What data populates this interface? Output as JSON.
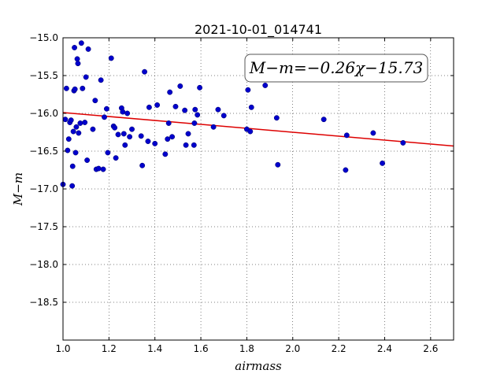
{
  "chart_data": {
    "type": "scatter",
    "title": "2021-10-01_014741",
    "xlabel": "airmass",
    "ylabel": "M−m",
    "xlim": [
      1.0,
      2.7
    ],
    "ylim": [
      -19.0,
      -15.0
    ],
    "y_inverted": true,
    "grid": true,
    "x_ticks": [
      1.0,
      1.2,
      1.4,
      1.6,
      1.8,
      2.0,
      2.2,
      2.4,
      2.6
    ],
    "x_tick_labels": [
      "1.0",
      "1.2",
      "1.4",
      "1.6",
      "1.8",
      "2.0",
      "2.2",
      "2.4",
      "2.6"
    ],
    "y_ticks": [
      -15.0,
      -15.5,
      -16.0,
      -16.5,
      -17.0,
      -17.5,
      -18.0,
      -18.5
    ],
    "y_tick_labels": [
      "−15.0",
      "−15.5",
      "−16.0",
      "−16.5",
      "−17.0",
      "−17.5",
      "−18.0",
      "−18.5"
    ],
    "annotation": "M−m=−0.26χ−15.73",
    "marker_color": "#0000cc",
    "fit_color": "#dd0000",
    "fit_line": {
      "slope": -0.26,
      "intercept": -15.73
    },
    "points": [
      {
        "x": 1.0,
        "y": -16.94
      },
      {
        "x": 1.01,
        "y": -16.08
      },
      {
        "x": 1.015,
        "y": -15.67
      },
      {
        "x": 1.02,
        "y": -16.49
      },
      {
        "x": 1.025,
        "y": -16.34
      },
      {
        "x": 1.03,
        "y": -16.12
      },
      {
        "x": 1.035,
        "y": -16.09
      },
      {
        "x": 1.04,
        "y": -16.96
      },
      {
        "x": 1.042,
        "y": -16.7
      },
      {
        "x": 1.045,
        "y": -16.24
      },
      {
        "x": 1.048,
        "y": -15.7
      },
      {
        "x": 1.05,
        "y": -15.13
      },
      {
        "x": 1.052,
        "y": -15.68
      },
      {
        "x": 1.055,
        "y": -16.52
      },
      {
        "x": 1.058,
        "y": -16.18
      },
      {
        "x": 1.062,
        "y": -15.28
      },
      {
        "x": 1.065,
        "y": -15.34
      },
      {
        "x": 1.068,
        "y": -16.26
      },
      {
        "x": 1.075,
        "y": -16.13
      },
      {
        "x": 1.08,
        "y": -15.07
      },
      {
        "x": 1.085,
        "y": -15.67
      },
      {
        "x": 1.095,
        "y": -16.12
      },
      {
        "x": 1.1,
        "y": -15.52
      },
      {
        "x": 1.105,
        "y": -16.62
      },
      {
        "x": 1.11,
        "y": -15.15
      },
      {
        "x": 1.13,
        "y": -16.21
      },
      {
        "x": 1.14,
        "y": -15.83
      },
      {
        "x": 1.145,
        "y": -16.74
      },
      {
        "x": 1.155,
        "y": -16.73
      },
      {
        "x": 1.165,
        "y": -15.56
      },
      {
        "x": 1.175,
        "y": -16.74
      },
      {
        "x": 1.18,
        "y": -16.05
      },
      {
        "x": 1.19,
        "y": -15.94
      },
      {
        "x": 1.195,
        "y": -16.52
      },
      {
        "x": 1.21,
        "y": -15.27
      },
      {
        "x": 1.22,
        "y": -16.17
      },
      {
        "x": 1.225,
        "y": -16.19
      },
      {
        "x": 1.23,
        "y": -16.59
      },
      {
        "x": 1.24,
        "y": -16.28
      },
      {
        "x": 1.255,
        "y": -15.93
      },
      {
        "x": 1.26,
        "y": -15.98
      },
      {
        "x": 1.265,
        "y": -16.27
      },
      {
        "x": 1.27,
        "y": -16.42
      },
      {
        "x": 1.28,
        "y": -16.0
      },
      {
        "x": 1.29,
        "y": -16.31
      },
      {
        "x": 1.3,
        "y": -16.21
      },
      {
        "x": 1.34,
        "y": -16.3
      },
      {
        "x": 1.345,
        "y": -16.69
      },
      {
        "x": 1.355,
        "y": -15.45
      },
      {
        "x": 1.37,
        "y": -16.37
      },
      {
        "x": 1.375,
        "y": -15.92
      },
      {
        "x": 1.4,
        "y": -16.4
      },
      {
        "x": 1.41,
        "y": -15.89
      },
      {
        "x": 1.445,
        "y": -16.54
      },
      {
        "x": 1.455,
        "y": -16.34
      },
      {
        "x": 1.46,
        "y": -16.13
      },
      {
        "x": 1.465,
        "y": -15.72
      },
      {
        "x": 1.475,
        "y": -16.31
      },
      {
        "x": 1.49,
        "y": -15.91
      },
      {
        "x": 1.51,
        "y": -15.64
      },
      {
        "x": 1.53,
        "y": -15.96
      },
      {
        "x": 1.535,
        "y": -16.42
      },
      {
        "x": 1.545,
        "y": -16.27
      },
      {
        "x": 1.57,
        "y": -16.42
      },
      {
        "x": 1.572,
        "y": -16.13
      },
      {
        "x": 1.575,
        "y": -15.95
      },
      {
        "x": 1.585,
        "y": -16.02
      },
      {
        "x": 1.595,
        "y": -15.66
      },
      {
        "x": 1.655,
        "y": -16.18
      },
      {
        "x": 1.675,
        "y": -15.95
      },
      {
        "x": 1.7,
        "y": -16.03
      },
      {
        "x": 1.8,
        "y": -16.21
      },
      {
        "x": 1.805,
        "y": -15.69
      },
      {
        "x": 1.815,
        "y": -16.24
      },
      {
        "x": 1.82,
        "y": -15.92
      },
      {
        "x": 1.88,
        "y": -15.63
      },
      {
        "x": 1.93,
        "y": -16.06
      },
      {
        "x": 1.935,
        "y": -16.68
      },
      {
        "x": 2.135,
        "y": -16.08
      },
      {
        "x": 2.23,
        "y": -16.75
      },
      {
        "x": 2.235,
        "y": -16.29
      },
      {
        "x": 2.35,
        "y": -16.26
      },
      {
        "x": 2.39,
        "y": -16.66
      },
      {
        "x": 2.48,
        "y": -16.39
      }
    ]
  }
}
